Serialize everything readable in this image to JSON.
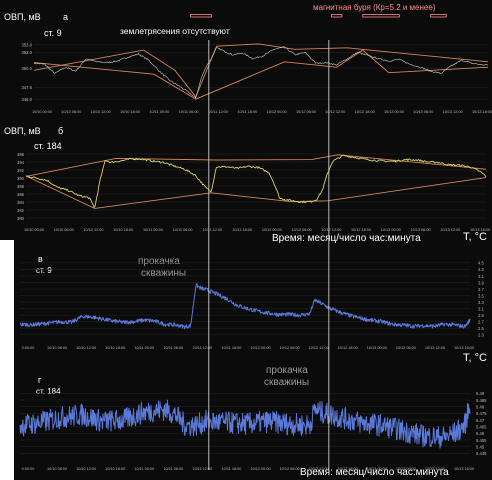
{
  "colors": {
    "background": "#0b0b0b",
    "envelope": "#d8865a",
    "redox_series": "#d9d36b",
    "station9_redox": "#cfcfcf",
    "temperature_series": "#5b79d8",
    "storm_marker": "#ff8c8c",
    "text": "#ffffff",
    "tick": "#bbbbbb"
  },
  "header": {
    "storm_label": "магнитная буря (Кр=5.2 и менее)",
    "storm_intervals": [
      {
        "start": 30,
        "end": 34
      },
      {
        "start": 57,
        "end": 59
      },
      {
        "start": 63,
        "end": 70
      },
      {
        "start": 76,
        "end": 79
      }
    ]
  },
  "event_markers": {
    "x_positions": [
      33.5,
      56.5
    ],
    "no_earthquake_label": "землетрясения отсутствуют",
    "pumping_label_a": "прокачка",
    "pumping_label_b": "скважины"
  },
  "time_axis_label": "Время: месяц/число час:минута",
  "chart_data": [
    {
      "id": "a",
      "type": "line",
      "panel_letter": "а",
      "ylabel": "ОВП, мВ",
      "station": "ст. 9",
      "xlim": [
        0,
        87
      ],
      "ylim": [
        345.5,
        354.5
      ],
      "yticks": [
        346.0,
        347.5,
        350.0,
        352.0,
        353.0
      ],
      "ytick_labels": [
        "346.0",
        "347.5",
        "350.0",
        "352.0",
        "353.0"
      ],
      "xtick_labels": [
        "10/10 00:00",
        "10/10 06:00",
        "10/10 12:00",
        "10/10 18:00",
        "10/11 00:00",
        "10/11 06:00",
        "10/11 12:00",
        "10/11 18:00",
        "10/12 00:00",
        "10/12 06:00",
        "10/12 12:00",
        "10/12 18:00",
        "10/13 00:00",
        "10/13 06:00",
        "10/13 12:00",
        "10/13 18:00"
      ],
      "series": [
        {
          "x": [
            0,
            2,
            4,
            6,
            8,
            10,
            12,
            14,
            16,
            18,
            20,
            22,
            24,
            26,
            28,
            30,
            31,
            32,
            33,
            34,
            35,
            36,
            38,
            40,
            42,
            44,
            46,
            48,
            50,
            52,
            54,
            56,
            58,
            60,
            62,
            64,
            66,
            68,
            70,
            72,
            74,
            76,
            78,
            80,
            82,
            84,
            86,
            87
          ],
          "y": [
            350.6,
            350.5,
            349.3,
            350.1,
            349.6,
            351.2,
            350.8,
            350.7,
            350.9,
            351.4,
            351.8,
            351.0,
            349.6,
            348.4,
            347.6,
            346.7,
            346.1,
            348.6,
            350.2,
            351.3,
            352.6,
            352.3,
            351.7,
            351.9,
            351.2,
            351.6,
            352.4,
            352.7,
            351.7,
            352.0,
            350.6,
            350.7,
            350.4,
            351.2,
            352.0,
            351.6,
            351.2,
            350.9,
            351.1,
            350.5,
            350.1,
            349.6,
            349.3,
            350.3,
            351.0,
            350.6,
            350.4,
            350.4
          ]
        }
      ],
      "envelope": [
        {
          "x": [
            0,
            21,
            27,
            31,
            35,
            43,
            50,
            60,
            87
          ],
          "y": [
            349.7,
            352.3,
            349.7,
            346.3,
            352.8,
            353.1,
            352.4,
            352.6,
            350.8
          ]
        },
        {
          "x": [
            0,
            23,
            31,
            48,
            58,
            63,
            68,
            87
          ],
          "y": [
            350.7,
            349.2,
            346.0,
            350.8,
            350.1,
            352.3,
            349.4,
            350.1
          ]
        }
      ]
    },
    {
      "id": "b",
      "type": "line",
      "panel_letter": "б",
      "ylabel": "ОВП, мВ",
      "station": "ст. 184",
      "xlim": [
        0,
        87
      ],
      "ylim": [
        379,
        398
      ],
      "yticks": [
        380,
        382,
        384,
        386,
        388,
        390,
        392,
        394,
        396
      ],
      "ytick_labels": [
        "380",
        "382",
        "384",
        "386",
        "388",
        "390",
        "392",
        "394",
        "396"
      ],
      "xtick_labels": [
        "10/10 00:00",
        "10/10 06:00",
        "10/10 12:00",
        "10/10 18:00",
        "10/11 00:00",
        "10/11 06:00",
        "10/11 12:00",
        "10/11 18:00",
        "10/12 00:00",
        "10/12 06:00",
        "10/12 12:00",
        "10/12 18:00",
        "10/13 00:00",
        "10/13 06:00",
        "10/13 12:00",
        "10/13 18:00"
      ],
      "series": [
        {
          "x": [
            0,
            2,
            4,
            6,
            8,
            10,
            12,
            13,
            14,
            15,
            16,
            18,
            20,
            22,
            24,
            26,
            28,
            30,
            32,
            34,
            35,
            36,
            38,
            40,
            42,
            44,
            46,
            47,
            48,
            50,
            52,
            54,
            55,
            56,
            57,
            58,
            60,
            62,
            64,
            66,
            68,
            70,
            72,
            74,
            76,
            78,
            80,
            82,
            84,
            86,
            87
          ],
          "y": [
            390.5,
            390.0,
            389.4,
            387.6,
            386.9,
            385.6,
            385.0,
            382.5,
            389.4,
            394.5,
            393.9,
            394.3,
            394.8,
            394.7,
            394.2,
            393.9,
            393.0,
            392.2,
            390.7,
            387.6,
            386.5,
            392.8,
            392.8,
            392.4,
            392.9,
            392.6,
            391.3,
            388.4,
            384.9,
            384.4,
            384.0,
            384.1,
            384.7,
            386.8,
            391.0,
            394.2,
            395.6,
            395.2,
            394.7,
            394.4,
            394.2,
            394.2,
            394.6,
            394.5,
            394.0,
            393.9,
            393.3,
            393.2,
            392.8,
            391.5,
            390.4
          ]
        }
      ],
      "envelope": [
        {
          "x": [
            0,
            17,
            36,
            54,
            59,
            87
          ],
          "y": [
            390.4,
            394.9,
            394.5,
            394.6,
            395.8,
            392.2
          ]
        },
        {
          "x": [
            0,
            13,
            35,
            50,
            57,
            87
          ],
          "y": [
            390.5,
            382.4,
            386.3,
            384.1,
            384.3,
            390.1
          ]
        }
      ]
    },
    {
      "id": "c",
      "type": "line",
      "panel_letter": "в",
      "ylabel": "T, °C",
      "station": "ст. 9",
      "xlim": [
        0,
        87
      ],
      "ylim": [
        2.2,
        4.65
      ],
      "yticks": [
        2.3,
        2.5,
        2.7,
        2.9,
        3.1,
        3.3,
        3.5,
        3.7,
        3.9,
        4.1,
        4.3,
        4.5
      ],
      "ytick_labels": [
        "2.3",
        "2.5",
        "2.7",
        "2.9",
        "3.1",
        "3.3",
        "3.5",
        "3.7",
        "3.9",
        "4.1",
        "4.3",
        "4.5"
      ],
      "xtick_labels": [
        "0:00:00",
        "10/10 06:00",
        "10/10 12:00",
        "10/10 18:00",
        "10/11 00:00",
        "10/11 06:00",
        "10/11 12:00",
        "10/11 18:00",
        "10/12 00:00",
        "10/12 06:00",
        "10/12 12:00",
        "10/12 18:00",
        "10/13 00:00",
        "10/13 06:00",
        "10/13 12:00",
        "10/13 18:00"
      ],
      "series": [
        {
          "x": [
            0,
            2,
            4,
            6,
            8,
            10,
            12,
            14,
            16,
            18,
            20,
            22,
            24,
            26,
            28,
            30,
            32,
            33,
            34,
            35,
            36,
            38,
            40,
            42,
            44,
            46,
            48,
            50,
            52,
            54,
            56,
            57,
            58,
            60,
            62,
            64,
            66,
            68,
            70,
            72,
            74,
            76,
            78,
            80,
            82,
            84,
            86,
            87
          ],
          "y": [
            2.62,
            2.6,
            2.63,
            2.66,
            2.7,
            2.68,
            2.86,
            2.84,
            2.78,
            2.72,
            2.68,
            2.7,
            2.75,
            2.72,
            2.62,
            2.6,
            2.54,
            2.58,
            3.82,
            3.72,
            3.68,
            3.55,
            3.4,
            3.2,
            3.1,
            3.02,
            2.96,
            2.92,
            2.92,
            2.9,
            2.94,
            3.36,
            3.28,
            3.1,
            2.98,
            2.88,
            2.8,
            2.74,
            2.7,
            2.62,
            2.6,
            2.56,
            2.58,
            2.56,
            2.62,
            2.6,
            2.55,
            2.75
          ]
        }
      ],
      "envelope": []
    },
    {
      "id": "d",
      "type": "line",
      "panel_letter": "г",
      "ylabel": "T, °C",
      "station": "ст. 184",
      "xlim": [
        0,
        87
      ],
      "ylim": [
        5.44,
        5.5
      ],
      "yticks": [
        5.445,
        5.45,
        5.455,
        5.46,
        5.465,
        5.47,
        5.475,
        5.48,
        5.485,
        5.49
      ],
      "ytick_labels": [
        "5.445",
        "5.45",
        "5.455",
        "5.46",
        "5.465",
        "5.47",
        "5.475",
        "5.48",
        "5.485",
        "5.49"
      ],
      "xtick_labels": [
        "0:00:00",
        "10/10 06:00",
        "10/10 12:00",
        "10/10 18:00",
        "10/11 00:00",
        "10/11 06:00",
        "10/11 12:00",
        "10/11 18:00",
        "10/12 00:00",
        "10/12 06:00",
        "10/12 12:00",
        "10/12 18:00",
        "10/13 00:00",
        "10/13 06:00",
        "10/13 12:00",
        "10/13 18:00"
      ],
      "series": [
        {
          "x": [
            0,
            4,
            8,
            12,
            16,
            20,
            24,
            28,
            30,
            32,
            34,
            36,
            40,
            44,
            48,
            52,
            56,
            57,
            58,
            62,
            66,
            70,
            74,
            78,
            82,
            84,
            86,
            87
          ],
          "y": [
            5.466,
            5.468,
            5.472,
            5.474,
            5.469,
            5.47,
            5.476,
            5.478,
            5.474,
            5.466,
            5.466,
            5.469,
            5.468,
            5.467,
            5.469,
            5.467,
            5.466,
            5.478,
            5.476,
            5.472,
            5.468,
            5.466,
            5.462,
            5.458,
            5.457,
            5.46,
            5.466,
            5.482
          ]
        }
      ],
      "envelope": []
    }
  ]
}
